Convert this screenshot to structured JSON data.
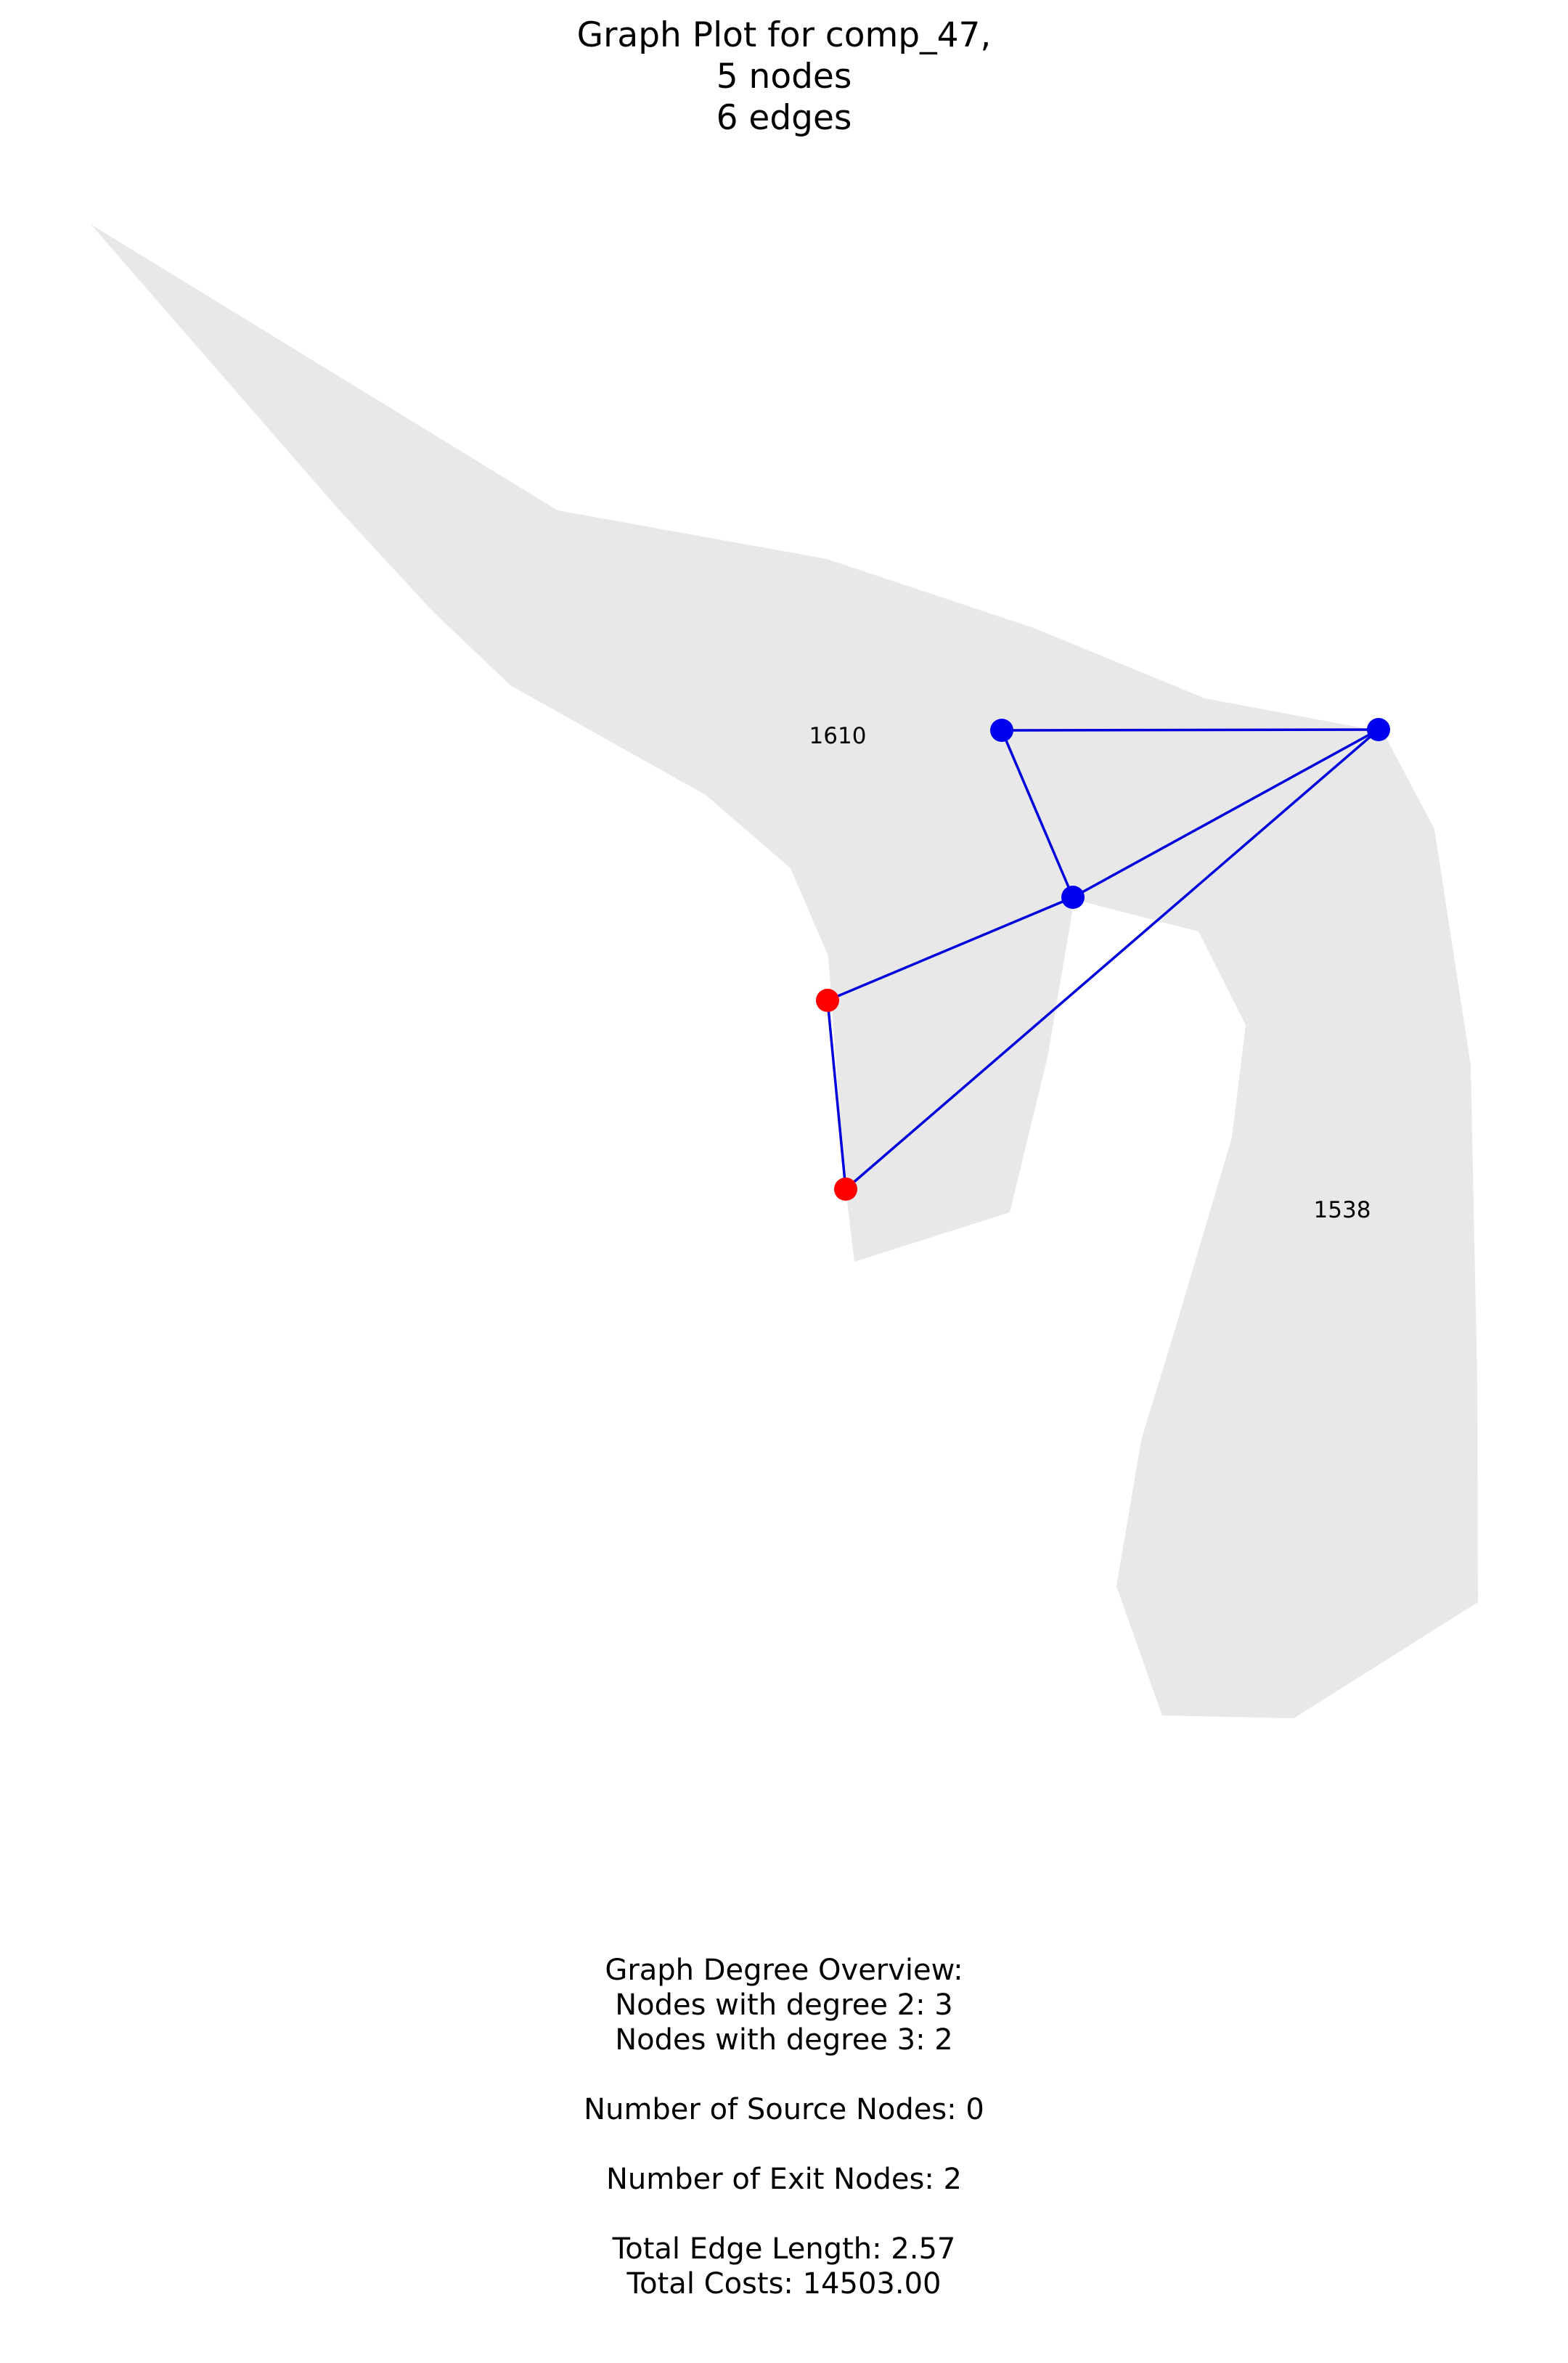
{
  "title": {
    "line1": "Graph Plot for comp_47,",
    "line2": "5 nodes",
    "line3": "6 edges"
  },
  "colors": {
    "background": "#ffffff",
    "region_fill": "#e8e8e8",
    "edge": "#0000dd",
    "node_regular": "#0000ee",
    "node_exit": "#ff0000"
  },
  "regions": [
    {
      "id": "region-1610",
      "label": "1610"
    },
    {
      "id": "region-1538",
      "label": "1538"
    }
  ],
  "nodes": [
    {
      "id": "n1",
      "type": "regular",
      "degree": 3
    },
    {
      "id": "n2",
      "type": "regular",
      "degree": 3
    },
    {
      "id": "n3",
      "type": "regular",
      "degree": 2
    },
    {
      "id": "n4",
      "type": "exit",
      "degree": 2
    },
    {
      "id": "n5",
      "type": "exit",
      "degree": 2
    }
  ],
  "edges": [
    {
      "from": "n3",
      "to": "n1"
    },
    {
      "from": "n3",
      "to": "n2"
    },
    {
      "from": "n1",
      "to": "n4"
    },
    {
      "from": "n1",
      "to": "n2"
    },
    {
      "from": "n2",
      "to": "n5"
    },
    {
      "from": "n4",
      "to": "n5"
    }
  ],
  "stats": {
    "header": "Graph Degree Overview:",
    "degree2": "Nodes with degree 2: 3",
    "degree3": "Nodes with degree 3: 2",
    "sources": "Number of Source Nodes: 0",
    "exits": "Number of Exit Nodes: 2",
    "edge_length": "Total Edge Length: 2.57",
    "costs": "Total Costs: 14503.00"
  }
}
